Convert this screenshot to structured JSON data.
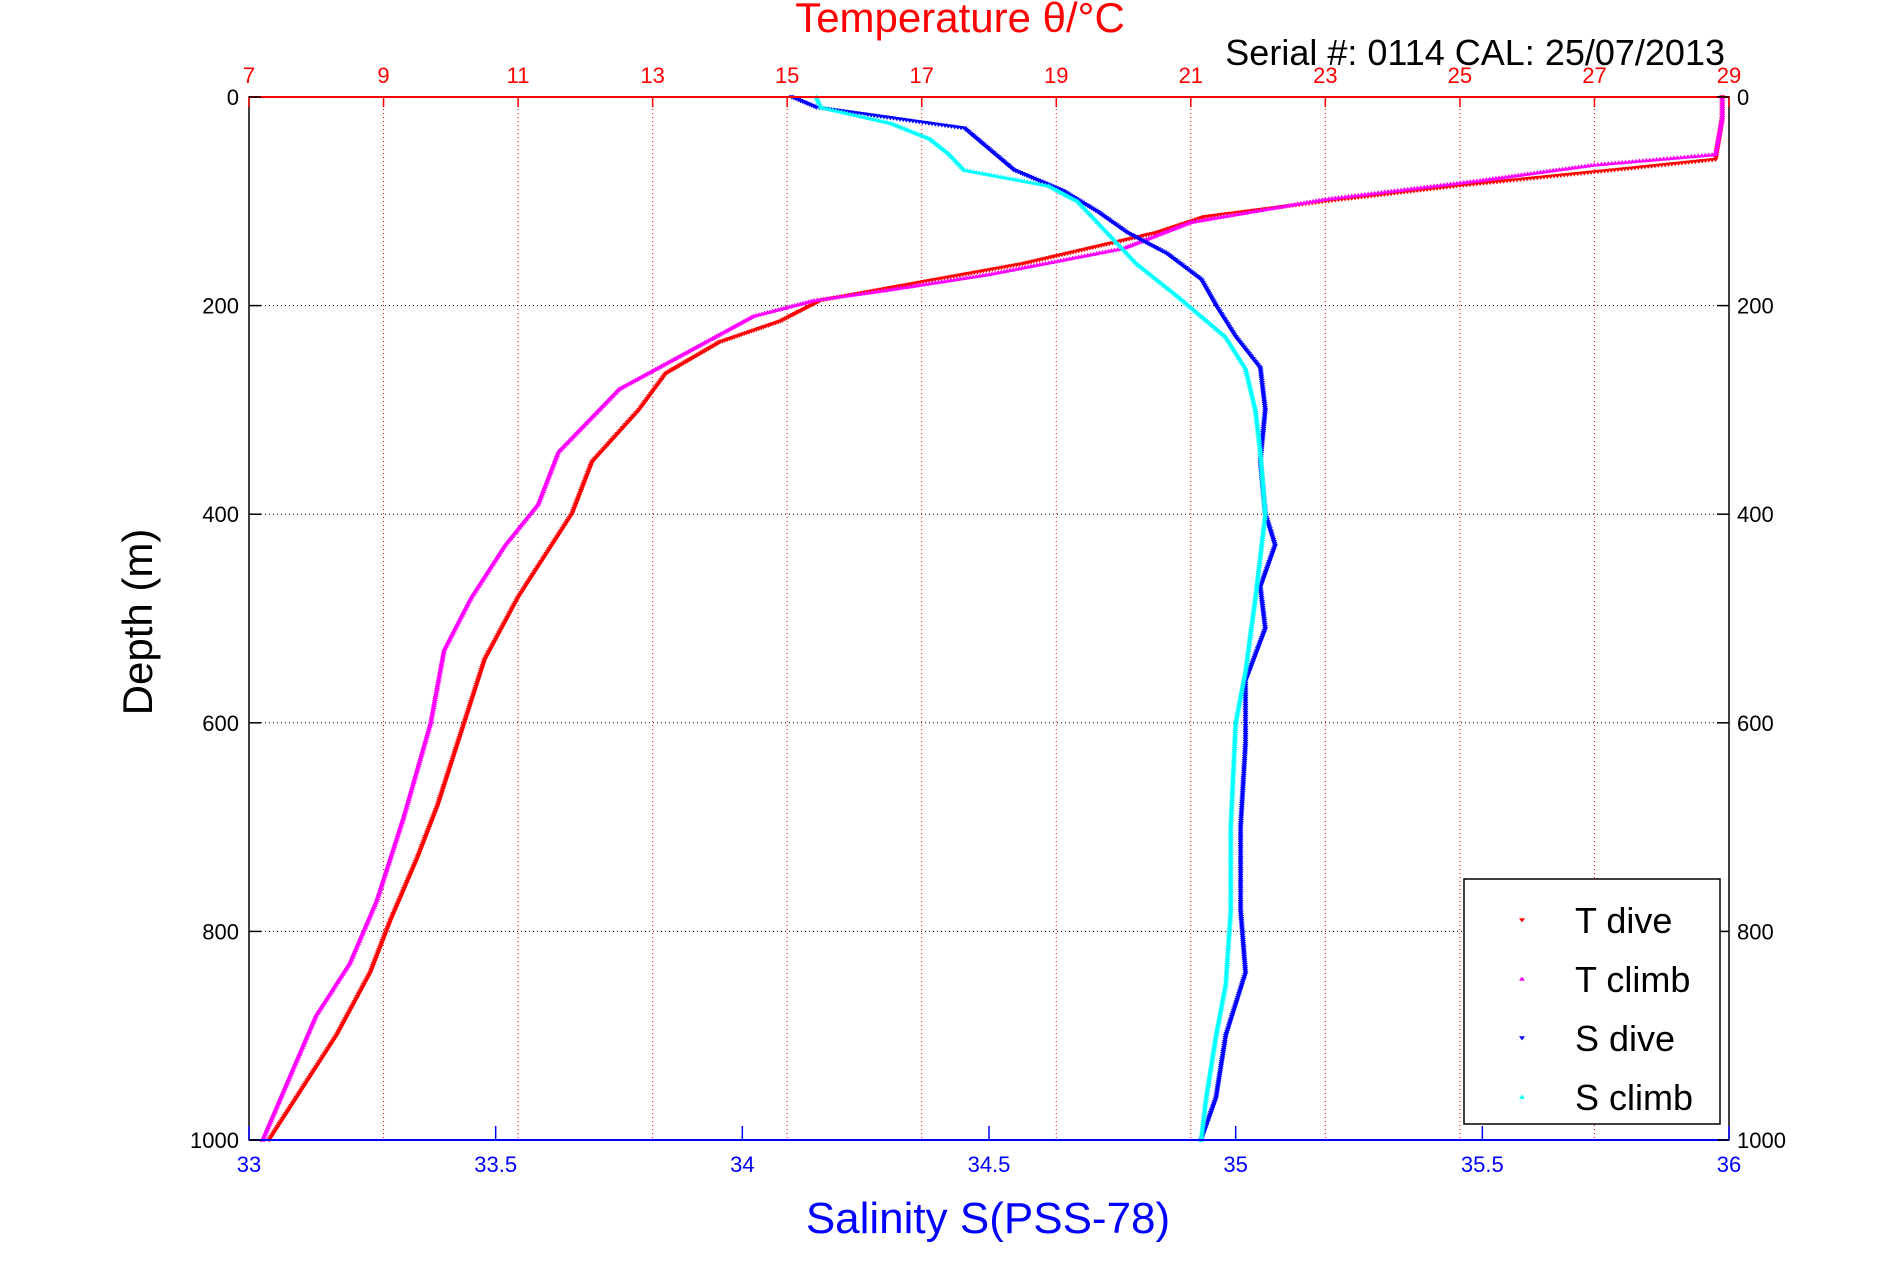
{
  "chart_data": {
    "type": "scatter",
    "title": "Temperature θ/°C",
    "subtitle": "Serial #: 0114  CAL: 25/07/2013",
    "xlabel": "Salinity S(PSS-78)",
    "ylabel": "Depth (m)",
    "x_salinity": {
      "label": "Salinity S(PSS-78)",
      "range": [
        33,
        36
      ],
      "ticks": [
        33,
        33.5,
        34,
        34.5,
        35,
        35.5,
        36
      ],
      "tick_labels": [
        "33",
        "33.5",
        "34",
        "34.5",
        "35",
        "35.5",
        "36"
      ]
    },
    "x_temperature": {
      "label": "Temperature θ/°C",
      "range": [
        7,
        29
      ],
      "ticks": [
        7,
        9,
        11,
        13,
        15,
        17,
        19,
        21,
        23,
        25,
        27,
        29
      ],
      "tick_labels": [
        "7",
        "9",
        "11",
        "13",
        "15",
        "17",
        "19",
        "21",
        "23",
        "25",
        "27",
        "29"
      ]
    },
    "y_depth": {
      "label": "Depth (m)",
      "range": [
        0,
        1000
      ],
      "reversed": true,
      "ticks": [
        0,
        200,
        400,
        600,
        800,
        1000
      ],
      "tick_labels": [
        "0",
        "200",
        "400",
        "600",
        "800",
        "1000"
      ]
    },
    "grid": true,
    "legend": "bottom-right",
    "series": [
      {
        "name": "T dive",
        "axis": "temperature",
        "color": "#ff0000",
        "marker": "triangle-down",
        "points": [
          [
            28.9,
            0
          ],
          [
            28.9,
            20
          ],
          [
            28.8,
            60
          ],
          [
            27.3,
            70
          ],
          [
            25.0,
            85
          ],
          [
            23.0,
            100
          ],
          [
            21.2,
            115
          ],
          [
            20.5,
            130
          ],
          [
            18.5,
            160
          ],
          [
            15.5,
            195
          ],
          [
            14.9,
            215
          ],
          [
            14.0,
            235
          ],
          [
            13.2,
            265
          ],
          [
            12.8,
            300
          ],
          [
            12.1,
            350
          ],
          [
            11.8,
            400
          ],
          [
            11.5,
            430
          ],
          [
            11.0,
            480
          ],
          [
            10.5,
            540
          ],
          [
            10.2,
            600
          ],
          [
            9.8,
            680
          ],
          [
            9.5,
            730
          ],
          [
            9.1,
            790
          ],
          [
            8.8,
            840
          ],
          [
            8.3,
            900
          ],
          [
            7.8,
            950
          ],
          [
            7.3,
            1000
          ]
        ]
      },
      {
        "name": "T climb",
        "axis": "temperature",
        "color": "#ff00ff",
        "marker": "triangle-up",
        "points": [
          [
            28.9,
            0
          ],
          [
            28.9,
            20
          ],
          [
            28.8,
            55
          ],
          [
            27.0,
            65
          ],
          [
            25.3,
            80
          ],
          [
            23.0,
            98
          ],
          [
            21.0,
            120
          ],
          [
            20.0,
            145
          ],
          [
            18.0,
            170
          ],
          [
            16.5,
            185
          ],
          [
            15.4,
            195
          ],
          [
            14.5,
            210
          ],
          [
            13.5,
            245
          ],
          [
            12.5,
            280
          ],
          [
            11.6,
            340
          ],
          [
            11.3,
            390
          ],
          [
            10.8,
            430
          ],
          [
            10.3,
            480
          ],
          [
            9.9,
            530
          ],
          [
            9.7,
            600
          ],
          [
            9.3,
            690
          ],
          [
            8.9,
            770
          ],
          [
            8.5,
            830
          ],
          [
            8.0,
            880
          ],
          [
            7.6,
            940
          ],
          [
            7.2,
            1000
          ]
        ]
      },
      {
        "name": "S dive",
        "axis": "salinity",
        "color": "#0000ff",
        "marker": "triangle-down",
        "points": [
          [
            34.1,
            0
          ],
          [
            34.15,
            10
          ],
          [
            34.45,
            30
          ],
          [
            34.5,
            50
          ],
          [
            34.55,
            70
          ],
          [
            34.65,
            90
          ],
          [
            34.72,
            110
          ],
          [
            34.78,
            130
          ],
          [
            34.86,
            150
          ],
          [
            34.93,
            175
          ],
          [
            34.96,
            200
          ],
          [
            35.0,
            230
          ],
          [
            35.05,
            260
          ],
          [
            35.06,
            300
          ],
          [
            35.05,
            350
          ],
          [
            35.06,
            400
          ],
          [
            35.08,
            430
          ],
          [
            35.05,
            470
          ],
          [
            35.06,
            510
          ],
          [
            35.02,
            560
          ],
          [
            35.02,
            620
          ],
          [
            35.01,
            700
          ],
          [
            35.01,
            780
          ],
          [
            35.02,
            840
          ],
          [
            34.98,
            900
          ],
          [
            34.96,
            960
          ],
          [
            34.93,
            1000
          ]
        ]
      },
      {
        "name": "S climb",
        "axis": "salinity",
        "color": "#00ffff",
        "marker": "triangle-up",
        "points": [
          [
            34.15,
            0
          ],
          [
            34.16,
            10
          ],
          [
            34.3,
            25
          ],
          [
            34.38,
            40
          ],
          [
            34.42,
            55
          ],
          [
            34.45,
            70
          ],
          [
            34.62,
            85
          ],
          [
            34.68,
            100
          ],
          [
            34.72,
            120
          ],
          [
            34.76,
            140
          ],
          [
            34.8,
            160
          ],
          [
            34.88,
            190
          ],
          [
            34.93,
            210
          ],
          [
            34.98,
            230
          ],
          [
            35.02,
            260
          ],
          [
            35.04,
            300
          ],
          [
            35.05,
            340
          ],
          [
            35.06,
            400
          ],
          [
            35.05,
            440
          ],
          [
            35.04,
            480
          ],
          [
            35.02,
            550
          ],
          [
            35.0,
            600
          ],
          [
            34.99,
            700
          ],
          [
            34.99,
            780
          ],
          [
            34.98,
            850
          ],
          [
            34.96,
            900
          ],
          [
            34.94,
            960
          ],
          [
            34.93,
            1000
          ]
        ]
      }
    ]
  },
  "colors": {
    "temperature": "#ff0000",
    "salinity": "#0000ff",
    "grid": "#888888",
    "frame": "#000000"
  }
}
